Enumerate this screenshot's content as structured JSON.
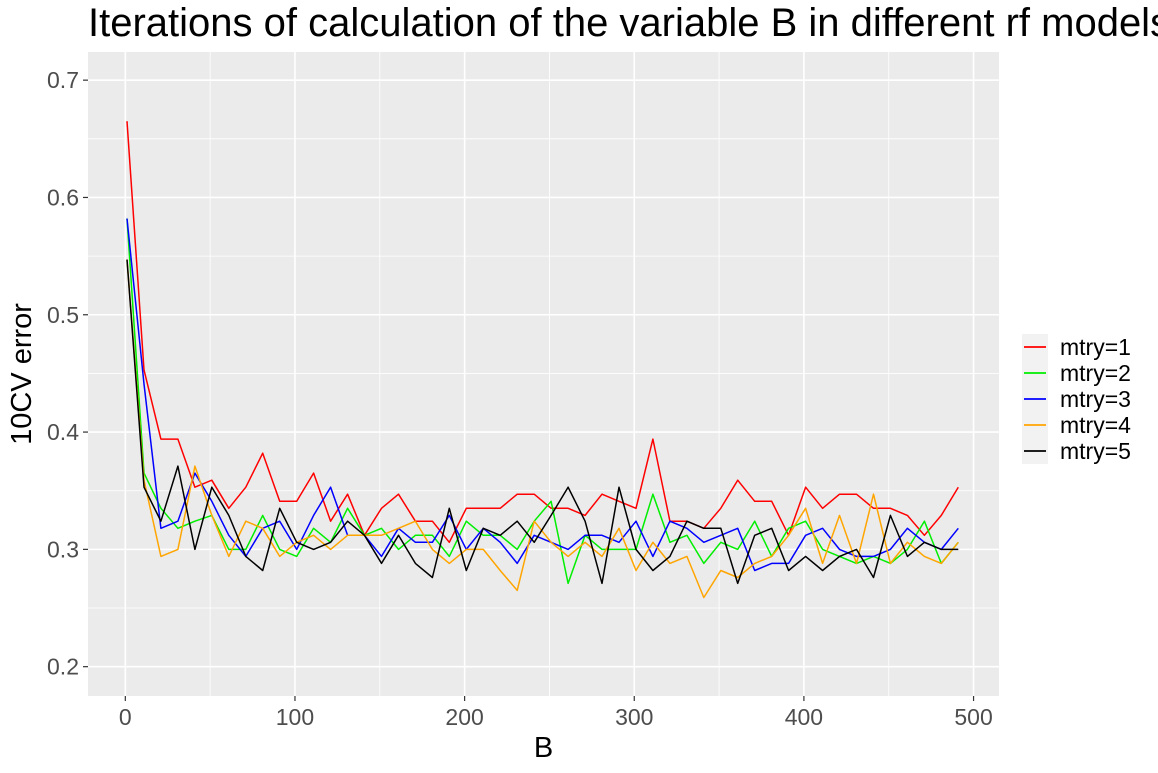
{
  "chart_data": {
    "type": "line",
    "title": "Iterations of calculation of the variable B in different rf models",
    "xlabel": "B",
    "ylabel": "10CV error",
    "xlim": [
      -22,
      515
    ],
    "ylim": [
      0.175,
      0.724
    ],
    "x_ticks": [
      0,
      100,
      200,
      300,
      400,
      500
    ],
    "x_tick_labels": [
      "0",
      "100",
      "200",
      "300",
      "400",
      "500"
    ],
    "y_ticks": [
      0.2,
      0.3,
      0.4,
      0.5,
      0.6,
      0.7
    ],
    "y_tick_labels": [
      "0.2",
      "0.3",
      "0.4",
      "0.5",
      "0.6",
      "0.7"
    ],
    "grid": true,
    "legend_position": "right",
    "x": [
      1,
      11,
      21,
      31,
      41,
      51,
      61,
      71,
      81,
      91,
      101,
      111,
      121,
      131,
      141,
      151,
      161,
      171,
      181,
      191,
      201,
      211,
      221,
      231,
      241,
      251,
      261,
      271,
      281,
      291,
      301,
      311,
      321,
      331,
      341,
      351,
      361,
      371,
      381,
      391,
      401,
      411,
      421,
      431,
      441,
      451,
      461,
      471,
      481,
      491
    ],
    "series": [
      {
        "name": "mtry=1",
        "color": "#FF0000",
        "values": [
          0.665,
          0.453,
          0.394,
          0.394,
          0.353,
          0.359,
          0.335,
          0.353,
          0.382,
          0.341,
          0.341,
          0.365,
          0.324,
          0.347,
          0.312,
          0.335,
          0.347,
          0.324,
          0.324,
          0.306,
          0.335,
          0.335,
          0.335,
          0.347,
          0.347,
          0.335,
          0.335,
          0.329,
          0.347,
          0.341,
          0.335,
          0.394,
          0.324,
          0.324,
          0.318,
          0.335,
          0.359,
          0.341,
          0.341,
          0.312,
          0.353,
          0.335,
          0.347,
          0.347,
          0.335,
          0.335,
          0.329,
          0.312,
          0.329,
          0.353
        ]
      },
      {
        "name": "mtry=2",
        "color": "#00EE00",
        "values": [
          0.582,
          0.365,
          0.335,
          0.318,
          0.324,
          0.329,
          0.3,
          0.3,
          0.329,
          0.3,
          0.294,
          0.318,
          0.306,
          0.335,
          0.312,
          0.318,
          0.3,
          0.312,
          0.312,
          0.294,
          0.324,
          0.312,
          0.312,
          0.3,
          0.324,
          0.341,
          0.271,
          0.312,
          0.3,
          0.3,
          0.3,
          0.347,
          0.306,
          0.312,
          0.288,
          0.306,
          0.3,
          0.324,
          0.294,
          0.318,
          0.324,
          0.3,
          0.294,
          0.288,
          0.294,
          0.288,
          0.3,
          0.324,
          0.288,
          0.306
        ]
      },
      {
        "name": "mtry=3",
        "color": "#0000FF",
        "values": [
          0.582,
          0.441,
          0.318,
          0.324,
          0.365,
          0.341,
          0.312,
          0.294,
          0.318,
          0.324,
          0.3,
          0.329,
          0.353,
          0.312,
          0.312,
          0.294,
          0.318,
          0.306,
          0.306,
          0.329,
          0.3,
          0.318,
          0.306,
          0.288,
          0.312,
          0.306,
          0.3,
          0.312,
          0.312,
          0.306,
          0.324,
          0.294,
          0.324,
          0.318,
          0.306,
          0.312,
          0.318,
          0.282,
          0.288,
          0.288,
          0.312,
          0.318,
          0.3,
          0.294,
          0.294,
          0.3,
          0.318,
          0.306,
          0.3,
          0.318
        ]
      },
      {
        "name": "mtry=4",
        "color": "#FFA500",
        "values": [
          0.547,
          0.359,
          0.294,
          0.3,
          0.371,
          0.329,
          0.294,
          0.324,
          0.318,
          0.294,
          0.306,
          0.312,
          0.3,
          0.312,
          0.312,
          0.312,
          0.318,
          0.324,
          0.3,
          0.288,
          0.3,
          0.3,
          0.282,
          0.265,
          0.324,
          0.306,
          0.294,
          0.306,
          0.294,
          0.318,
          0.282,
          0.306,
          0.288,
          0.294,
          0.259,
          0.282,
          0.276,
          0.288,
          0.294,
          0.312,
          0.335,
          0.288,
          0.329,
          0.288,
          0.347,
          0.288,
          0.306,
          0.294,
          0.288,
          0.306
        ]
      },
      {
        "name": "mtry=5",
        "color": "#000000",
        "values": [
          0.547,
          0.353,
          0.324,
          0.371,
          0.3,
          0.353,
          0.329,
          0.294,
          0.282,
          0.335,
          0.306,
          0.3,
          0.306,
          0.324,
          0.312,
          0.288,
          0.312,
          0.288,
          0.276,
          0.335,
          0.282,
          0.318,
          0.312,
          0.324,
          0.306,
          0.329,
          0.353,
          0.324,
          0.271,
          0.353,
          0.3,
          0.282,
          0.294,
          0.324,
          0.318,
          0.318,
          0.271,
          0.312,
          0.318,
          0.282,
          0.294,
          0.282,
          0.294,
          0.3,
          0.276,
          0.329,
          0.294,
          0.306,
          0.3,
          0.3
        ]
      }
    ]
  }
}
